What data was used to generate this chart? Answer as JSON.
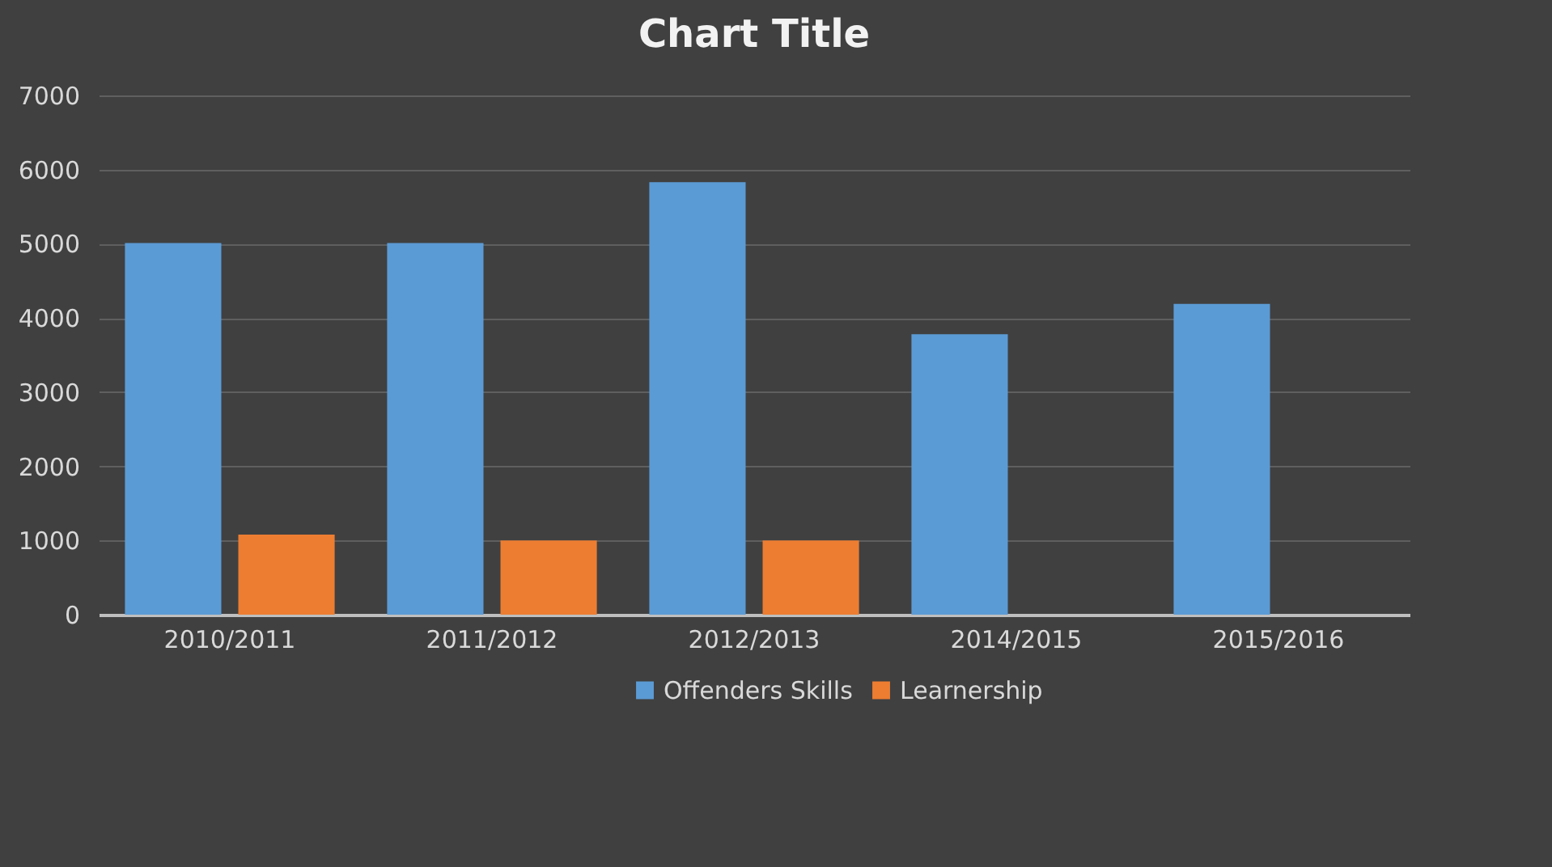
{
  "chart_data": {
    "type": "bar",
    "title": "Chart Title",
    "categories": [
      "2010/2011",
      "2011/2012",
      "2012/2013",
      "2014/2015",
      "2015/2016"
    ],
    "series": [
      {
        "name": "Offenders Skills",
        "color": "#5b9bd5",
        "values": [
          5010,
          5010,
          5830,
          3780,
          4190
        ]
      },
      {
        "name": "Learnership",
        "color": "#ed7d31",
        "values": [
          1080,
          1000,
          1000,
          null,
          null
        ]
      }
    ],
    "ylim": [
      0,
      7000
    ],
    "yticks": [
      0,
      1000,
      2000,
      3000,
      4000,
      5000,
      6000,
      7000
    ],
    "grid": "y",
    "legend": "bottom"
  }
}
